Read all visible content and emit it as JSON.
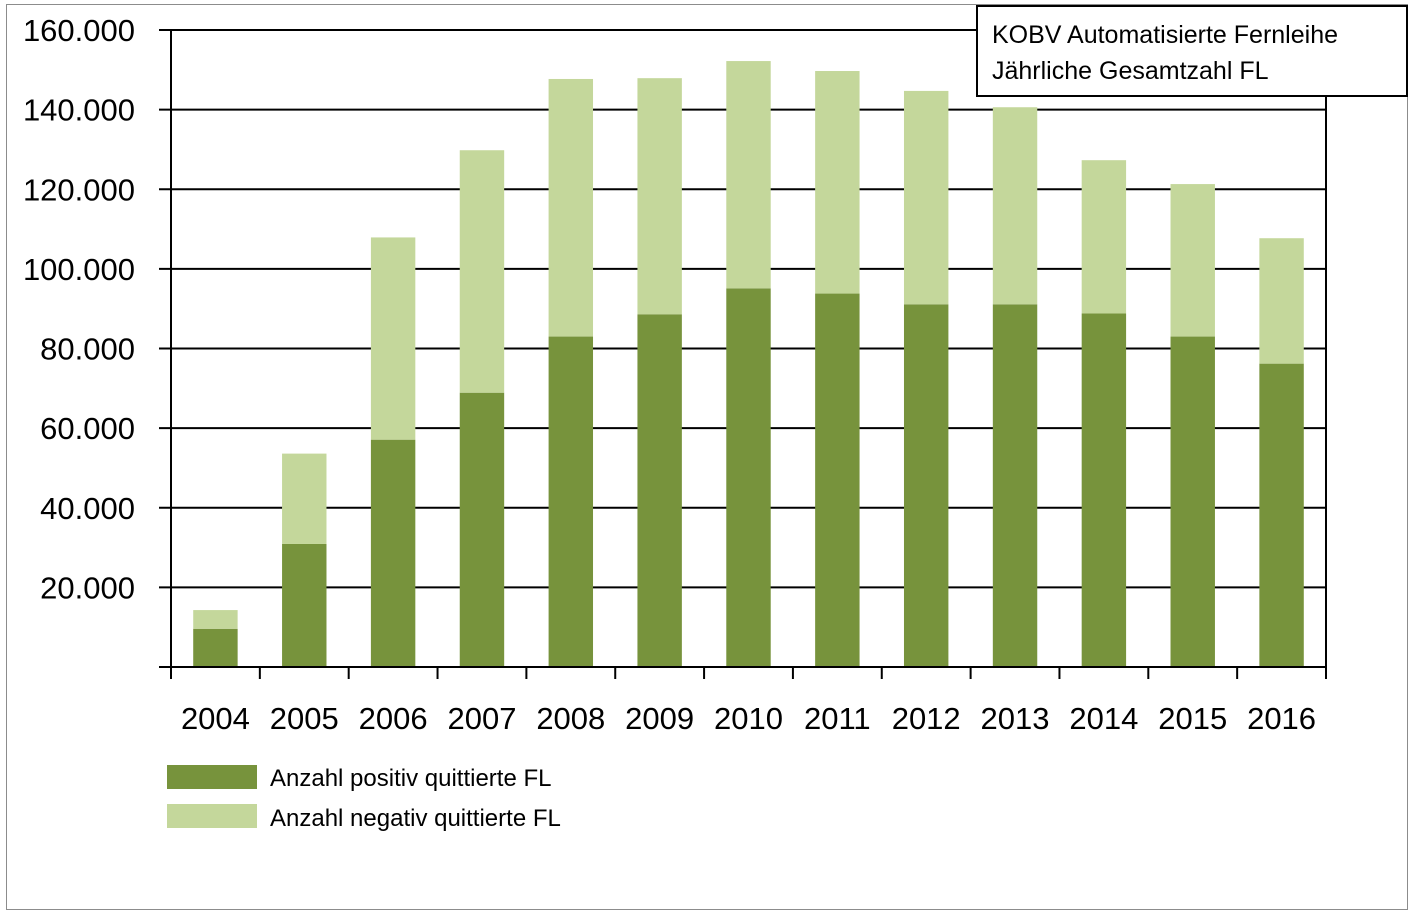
{
  "chart_data": {
    "type": "bar",
    "stacked": true,
    "title": "KOBV Automatisierte Fernleihe",
    "subtitle": "Jährliche Gesamtzahl FL",
    "xlabel": "",
    "ylabel": "",
    "categories": [
      "2004",
      "2005",
      "2006",
      "2007",
      "2008",
      "2009",
      "2010",
      "2011",
      "2012",
      "2013",
      "2014",
      "2015",
      "2016"
    ],
    "series": [
      {
        "name": "Anzahl positiv quittierte FL",
        "color": "#77933c",
        "values": [
          9600,
          30900,
          57100,
          68900,
          83000,
          88600,
          95100,
          93800,
          91100,
          91100,
          88800,
          83000,
          76200
        ]
      },
      {
        "name": "Anzahl negativ quittierte FL",
        "color": "#c4d79b",
        "values": [
          4700,
          22700,
          50800,
          60900,
          64700,
          59300,
          57100,
          55900,
          53600,
          49500,
          38500,
          38300,
          31500
        ]
      }
    ],
    "ylim": [
      0,
      160000
    ],
    "yticks": [
      0,
      20000,
      40000,
      60000,
      80000,
      100000,
      120000,
      140000,
      160000
    ],
    "ytick_labels": [
      "",
      "20.000",
      "40.000",
      "60.000",
      "80.000",
      "100.000",
      "120.000",
      "140.000",
      "160.000"
    ],
    "grid": true,
    "legend_position": "bottom-left"
  }
}
